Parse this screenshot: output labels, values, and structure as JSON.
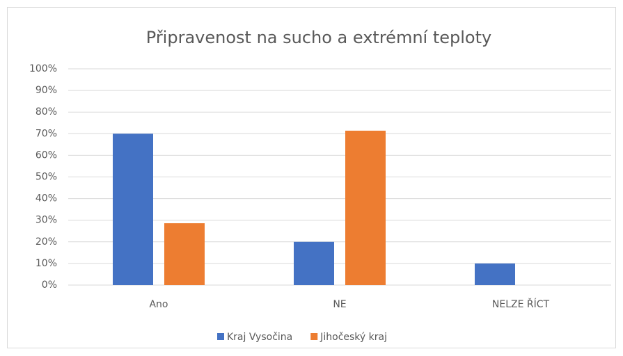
{
  "chart_data": {
    "type": "bar",
    "title": "Připravenost na sucho a extrémní teploty",
    "categories": [
      "Ano",
      "NE",
      "NELZE ŘÍCT"
    ],
    "series": [
      {
        "name": "Kraj Vysočina",
        "color": "#4472c4",
        "values": [
          70,
          20,
          10
        ]
      },
      {
        "name": "Jihočeský kraj",
        "color": "#ed7d31",
        "values": [
          28.6,
          71.4,
          0
        ]
      }
    ],
    "ylim": [
      0,
      100
    ],
    "yticks": [
      {
        "value": 0,
        "label": "0%"
      },
      {
        "value": 10,
        "label": "10%"
      },
      {
        "value": 20,
        "label": "20%"
      },
      {
        "value": 30,
        "label": "30%"
      },
      {
        "value": 40,
        "label": "40%"
      },
      {
        "value": 50,
        "label": "50%"
      },
      {
        "value": 60,
        "label": "60%"
      },
      {
        "value": 70,
        "label": "70%"
      },
      {
        "value": 80,
        "label": "80%"
      },
      {
        "value": 90,
        "label": "90%"
      },
      {
        "value": 100,
        "label": "100%"
      }
    ],
    "grid": true,
    "legend": "bottom"
  }
}
